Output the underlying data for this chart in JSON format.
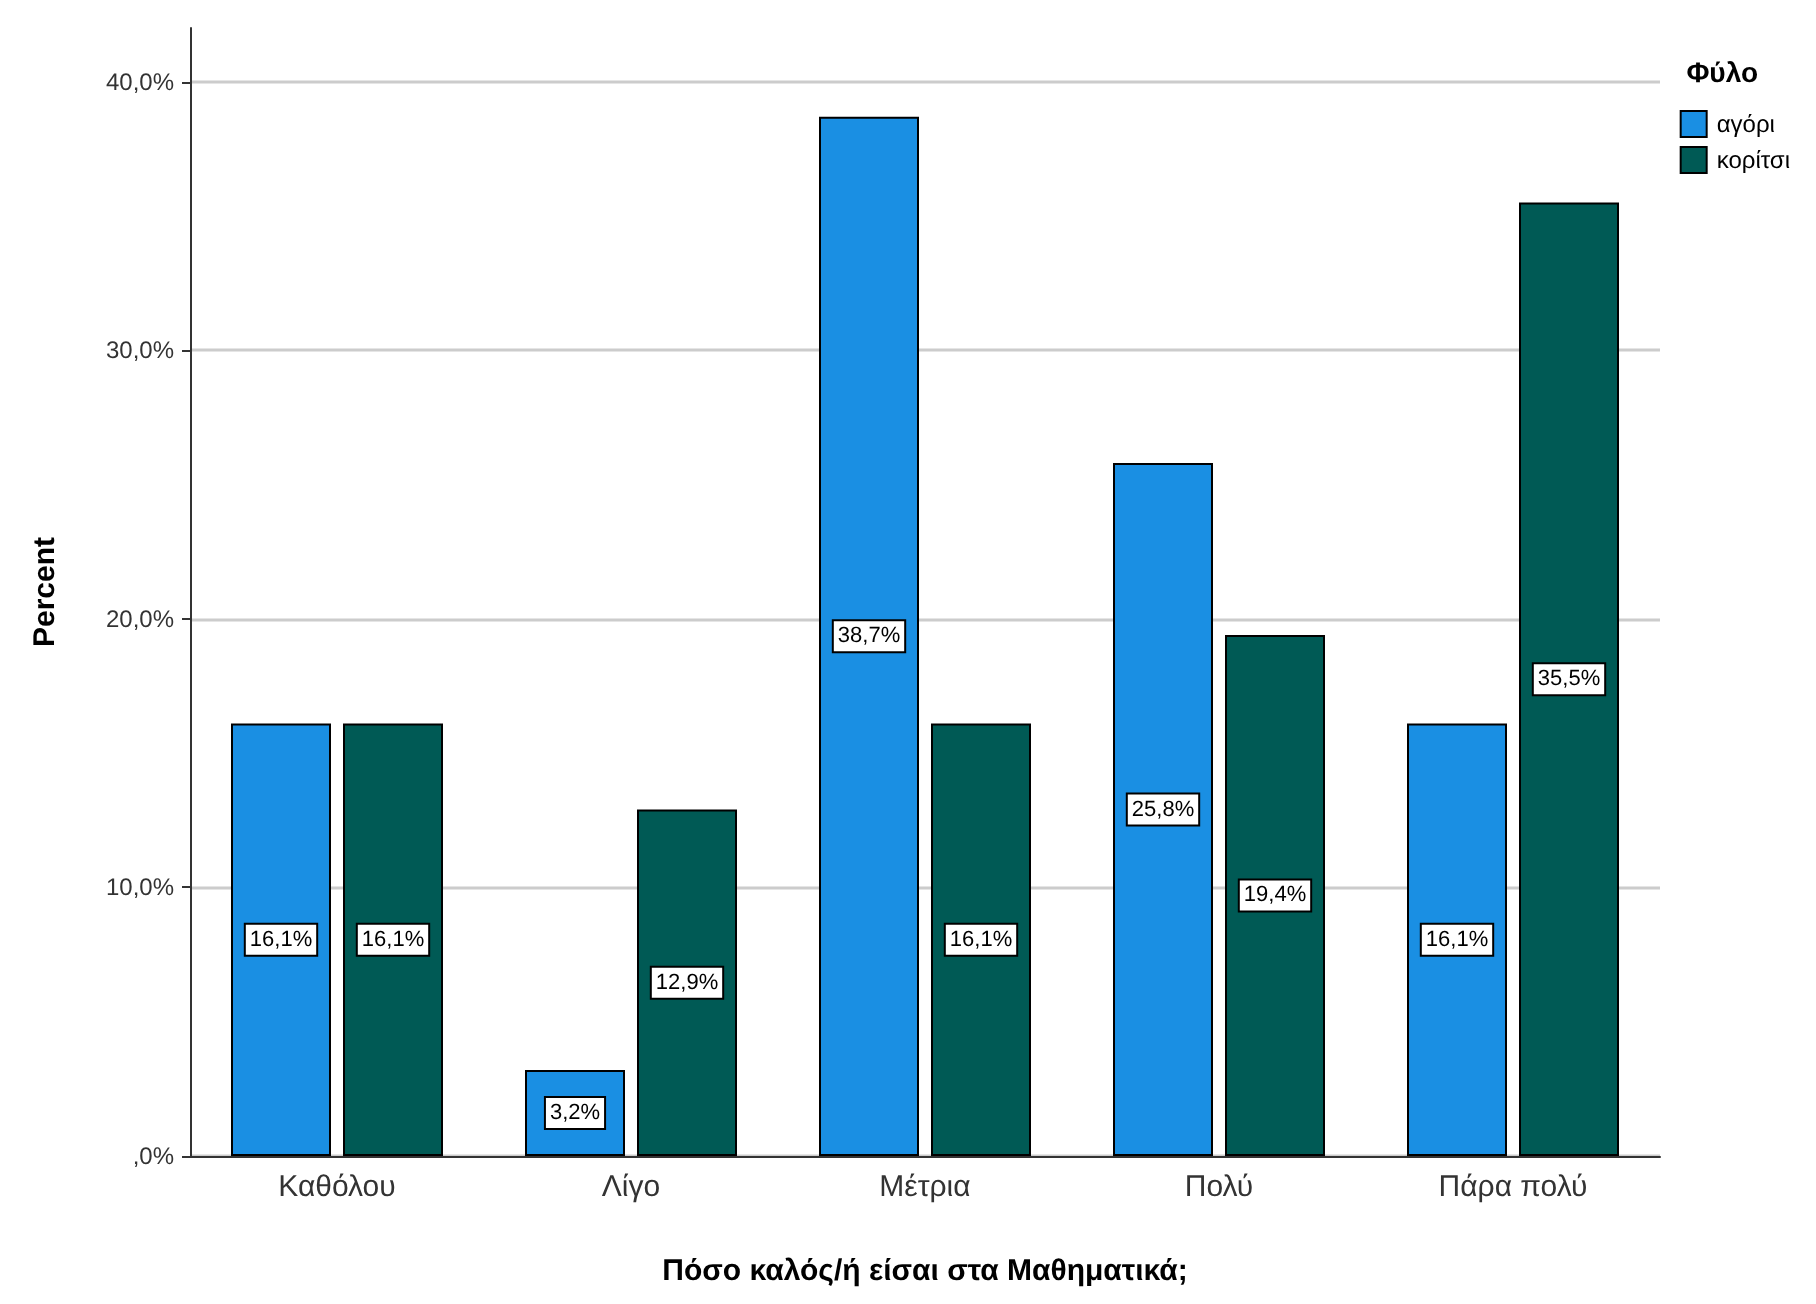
{
  "chart_data": {
    "type": "bar",
    "xlabel": "Πόσο καλός/ή είσαι στα Μαθηματικά;",
    "ylabel": "Percent",
    "legend_title": "Φύλο",
    "categories": [
      "Καθόλου",
      "Λίγο",
      "Μέτρια",
      "Πολύ",
      "Πάρα πολύ"
    ],
    "series": [
      {
        "name": "αγόρι",
        "color": "#1a8fe3",
        "values": [
          16.1,
          3.2,
          38.7,
          25.8,
          16.1
        ],
        "value_labels": [
          "16,1%",
          "3,2%",
          "38,7%",
          "25,8%",
          "16,1%"
        ]
      },
      {
        "name": "κορίτσι",
        "color": "#005a55",
        "values": [
          16.1,
          12.9,
          16.1,
          19.4,
          35.5
        ],
        "value_labels": [
          "16,1%",
          "12,9%",
          "16,1%",
          "19,4%",
          "35,5%"
        ]
      }
    ],
    "ylim": [
      0,
      42
    ],
    "yticks": [
      {
        "value": 0,
        "label": ",0%"
      },
      {
        "value": 10,
        "label": "10,0%"
      },
      {
        "value": 20,
        "label": "20,0%"
      },
      {
        "value": 30,
        "label": "30,0%"
      },
      {
        "value": 40,
        "label": "40,0%"
      }
    ],
    "grid": "y",
    "legend": "top right"
  }
}
